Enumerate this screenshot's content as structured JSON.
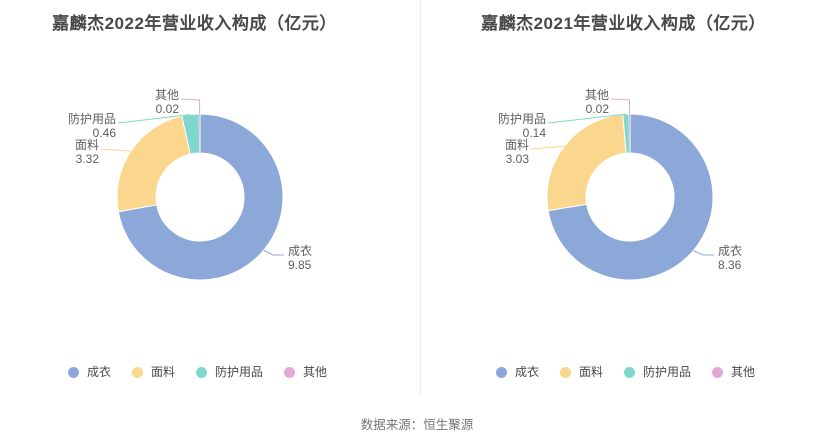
{
  "figure": {
    "source_note": "数据来源：恒生聚源"
  },
  "chart_data": [
    {
      "type": "pie",
      "variant": "donut",
      "title": "嘉麟杰2022年营业收入构成（亿元）",
      "unit": "亿元",
      "categories": [
        "成衣",
        "面料",
        "防护用品",
        "其他"
      ],
      "values": [
        9.85,
        3.32,
        0.46,
        0.02
      ],
      "colors": [
        "#8ca8d9",
        "#fbd68d",
        "#7fd8ce",
        "#e2a9d3"
      ],
      "start_angle": 90,
      "clockwise": true,
      "legend_position": "bottom",
      "label_style": "outside name+value with leader lines"
    },
    {
      "type": "pie",
      "variant": "donut",
      "title": "嘉麟杰2021年营业收入构成（亿元）",
      "unit": "亿元",
      "categories": [
        "成衣",
        "面料",
        "防护用品",
        "其他"
      ],
      "values": [
        8.36,
        3.03,
        0.14,
        0.02
      ],
      "colors": [
        "#8ca8d9",
        "#fbd68d",
        "#7fd8ce",
        "#e2a9d3"
      ],
      "start_angle": 90,
      "clockwise": true,
      "legend_position": "bottom",
      "label_style": "outside name+value with leader lines"
    }
  ]
}
